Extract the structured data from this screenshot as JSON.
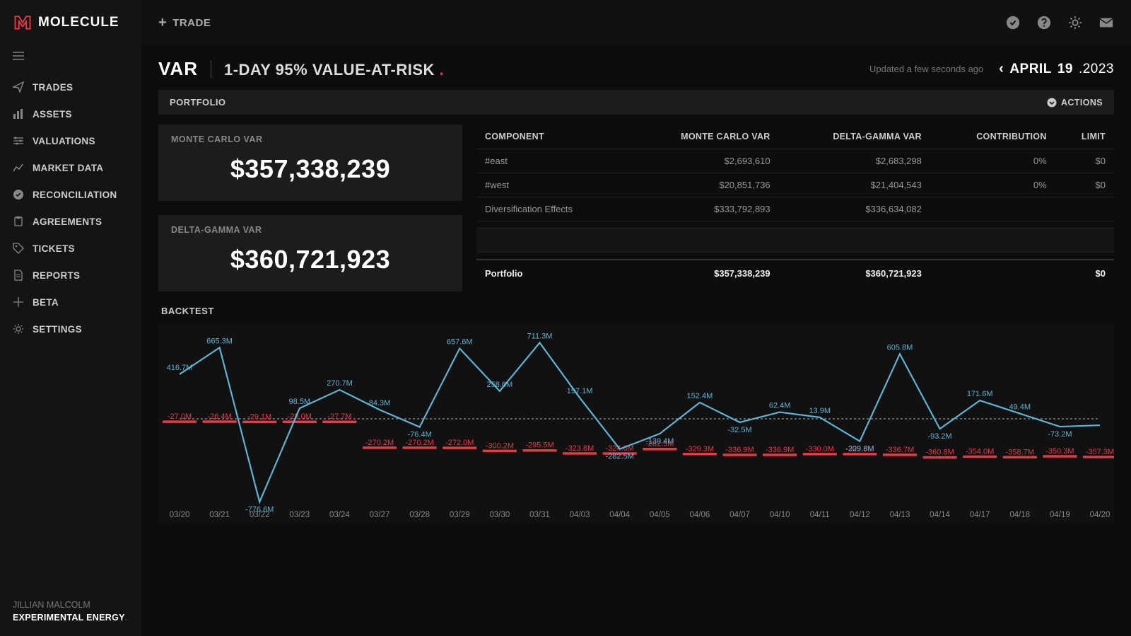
{
  "brand": {
    "name": "MOLECULE",
    "logo_color": "#e63946"
  },
  "sidebar": {
    "items": [
      {
        "icon": "paper-plane",
        "label": "TRADES"
      },
      {
        "icon": "bar-chart",
        "label": "ASSETS"
      },
      {
        "icon": "sliders",
        "label": "VALUATIONS"
      },
      {
        "icon": "line-chart",
        "label": "MARKET DATA"
      },
      {
        "icon": "check-circle",
        "label": "RECONCILIATION"
      },
      {
        "icon": "clipboard",
        "label": "AGREEMENTS"
      },
      {
        "icon": "tag",
        "label": "TICKETS"
      },
      {
        "icon": "file",
        "label": "REPORTS"
      },
      {
        "icon": "wand",
        "label": "BETA"
      },
      {
        "icon": "gear",
        "label": "SETTINGS"
      }
    ]
  },
  "user": {
    "name": "JILLIAN MALCOLM",
    "company": "EXPERIMENTAL ENERGY"
  },
  "topbar": {
    "trade_label": "TRADE"
  },
  "header": {
    "var": "VAR",
    "subtitle": "1-DAY 95% VALUE-AT-RISK",
    "updated": "Updated a few seconds ago",
    "date_month": "APRIL",
    "date_day": "19",
    "date_year": ".2023"
  },
  "portfolio": {
    "title": "PORTFOLIO",
    "actions": "ACTIONS",
    "cards": {
      "mc_label": "MONTE CARLO VAR",
      "mc_value": "$357,338,239",
      "dg_label": "DELTA-GAMMA VAR",
      "dg_value": "$360,721,923"
    },
    "table": {
      "cols": [
        "COMPONENT",
        "MONTE CARLO VAR",
        "DELTA-GAMMA VAR",
        "CONTRIBUTION",
        "LIMIT"
      ],
      "rows": [
        {
          "c0": "#east",
          "c1": "$2,693,610",
          "c2": "$2,683,298",
          "c3": "0%",
          "c4": "$0"
        },
        {
          "c0": "#west",
          "c1": "$20,851,736",
          "c2": "$21,404,543",
          "c3": "0%",
          "c4": "$0"
        },
        {
          "c0": "Diversification Effects",
          "c1": "$333,792,893",
          "c2": "$336,634,082",
          "c3": "",
          "c4": ""
        }
      ],
      "total": {
        "c0": "Portfolio",
        "c1": "$357,338,239",
        "c2": "$360,721,923",
        "c3": "",
        "c4": "$0"
      }
    }
  },
  "backtest": {
    "label": "BACKTEST",
    "colors": {
      "line": "#5fb3d4",
      "neg": "#e63946",
      "zero_line": "#ffffff",
      "bg": "#111111"
    },
    "y_range": [
      -800,
      800
    ],
    "x_labels": [
      "03/20",
      "03/21",
      "03/22",
      "03/23",
      "03/24",
      "03/27",
      "03/28",
      "03/29",
      "03/30",
      "03/31",
      "04/03",
      "04/04",
      "04/05",
      "04/06",
      "04/07",
      "04/10",
      "04/11",
      "04/12",
      "04/13",
      "04/14",
      "04/17",
      "04/18",
      "04/19",
      "04/20"
    ],
    "series_line": [
      {
        "x": 0,
        "v": 416.7,
        "lbl": "416.7M"
      },
      {
        "x": 1,
        "v": 665.3,
        "lbl": "665.3M"
      },
      {
        "x": 2,
        "v": -776.6,
        "lbl": "-776.6M"
      },
      {
        "x": 3,
        "v": 98.5,
        "lbl": "98.5M"
      },
      {
        "x": 4,
        "v": 270.7,
        "lbl": "270.7M"
      },
      {
        "x": 5,
        "v": 84.3,
        "lbl": "84.3M"
      },
      {
        "x": 6,
        "v": -76.4,
        "lbl": "-76.4M"
      },
      {
        "x": 7,
        "v": 657.6,
        "lbl": "657.6M"
      },
      {
        "x": 8,
        "v": 258.6,
        "lbl": "258.6M"
      },
      {
        "x": 9,
        "v": 711.3,
        "lbl": "711.3M"
      },
      {
        "x": 10,
        "v": 197.1,
        "lbl": "197.1M"
      },
      {
        "x": 11,
        "v": -282.5,
        "lbl": "-282.5M"
      },
      {
        "x": 12,
        "v": -139.4,
        "lbl": "-139.4M"
      },
      {
        "x": 13,
        "v": 152.4,
        "lbl": "152.4M"
      },
      {
        "x": 14,
        "v": -32.5,
        "lbl": "-32.5M"
      },
      {
        "x": 15,
        "v": 62.4,
        "lbl": "62.4M"
      },
      {
        "x": 16,
        "v": 13.9,
        "lbl": "13.9M"
      },
      {
        "x": 17,
        "v": -209.6,
        "lbl": "-209.6M"
      },
      {
        "x": 18,
        "v": 605.8,
        "lbl": "605.8M"
      },
      {
        "x": 19,
        "v": -93.2,
        "lbl": "-93.2M"
      },
      {
        "x": 20,
        "v": 171.6,
        "lbl": "171.6M"
      },
      {
        "x": 21,
        "v": 49.4,
        "lbl": "49.4M"
      },
      {
        "x": 22,
        "v": -73.2,
        "lbl": "-73.2M"
      },
      {
        "x": 23,
        "v": -60.0,
        "lbl": ""
      }
    ],
    "neg_series": [
      {
        "x": 0,
        "v": -27.0,
        "lbl": "-27.0M"
      },
      {
        "x": 1,
        "v": -26.4,
        "lbl": "-26.4M"
      },
      {
        "x": 2,
        "v": -29.1,
        "lbl": "-29.1M"
      },
      {
        "x": 3,
        "v": -28.0,
        "lbl": "-28.0M"
      },
      {
        "x": 4,
        "v": -27.7,
        "lbl": "-27.7M"
      },
      {
        "x": 5,
        "v": -270.2,
        "lbl": "-270.2M"
      },
      {
        "x": 6,
        "v": -270.2,
        "lbl": "-270.2M"
      },
      {
        "x": 7,
        "v": -272.0,
        "lbl": "-272.0M"
      },
      {
        "x": 8,
        "v": -300.2,
        "lbl": "-300.2M"
      },
      {
        "x": 9,
        "v": -295.5,
        "lbl": "-295.5M"
      },
      {
        "x": 10,
        "v": -323.8,
        "lbl": "-323.8M"
      },
      {
        "x": 11,
        "v": -324.0,
        "lbl": "-324.0M"
      },
      {
        "x": 12,
        "v": -282.5,
        "lbl": "-282.5M"
      },
      {
        "x": 13,
        "v": -329.3,
        "lbl": "-329.3M"
      },
      {
        "x": 14,
        "v": -336.9,
        "lbl": "-336.9M"
      },
      {
        "x": 15,
        "v": -336.9,
        "lbl": "-336.9M"
      },
      {
        "x": 16,
        "v": -330.0,
        "lbl": "-330.0M"
      },
      {
        "x": 17,
        "v": -329.8,
        "lbl": "-329.8M"
      },
      {
        "x": 18,
        "v": -336.7,
        "lbl": "-336.7M"
      },
      {
        "x": 19,
        "v": -360.8,
        "lbl": "-360.8M"
      },
      {
        "x": 20,
        "v": -354.0,
        "lbl": "-354.0M"
      },
      {
        "x": 21,
        "v": -358.7,
        "lbl": "-358.7M"
      },
      {
        "x": 22,
        "v": -350.3,
        "lbl": "-350.3M"
      },
      {
        "x": 23,
        "v": -357.3,
        "lbl": "-357.3M"
      }
    ]
  }
}
